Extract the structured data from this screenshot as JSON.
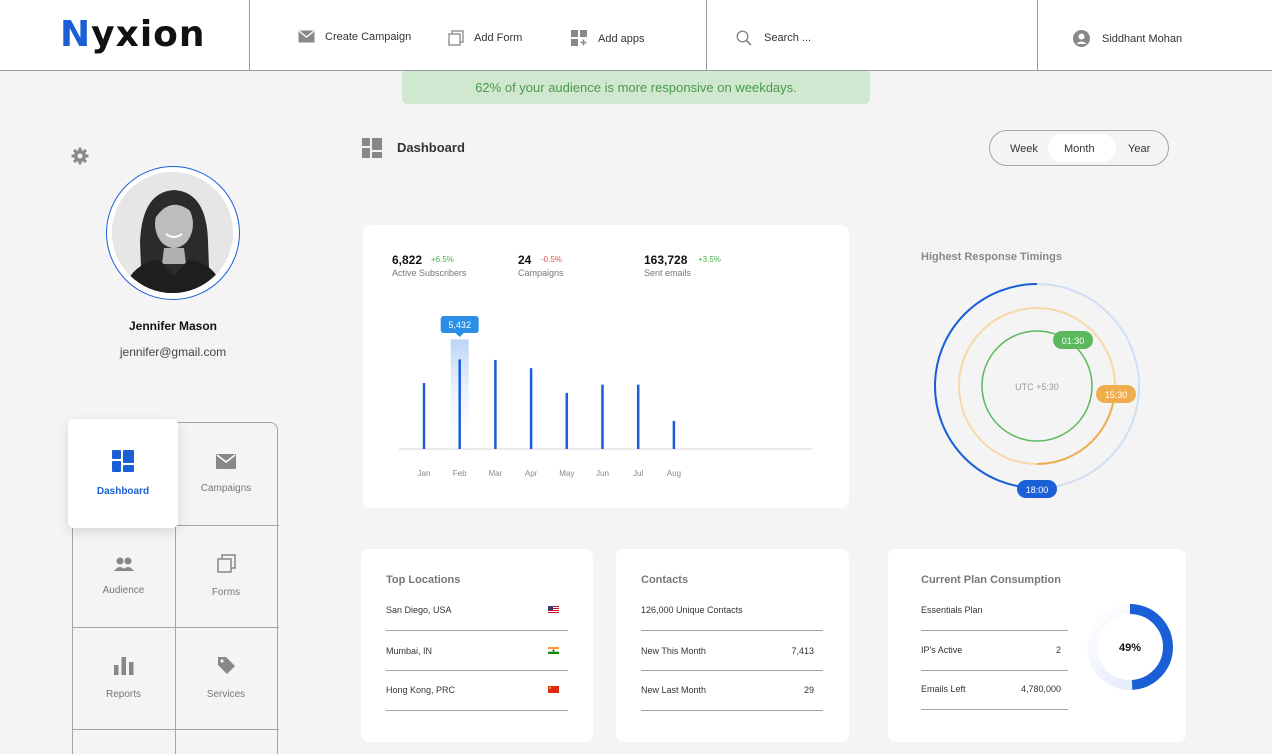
{
  "header": {
    "logo_first": "N",
    "logo_rest": "yxion",
    "nav": [
      {
        "label": "Create Campaign",
        "icon": "mail-icon"
      },
      {
        "label": "Add Form",
        "icon": "form-copy-icon"
      },
      {
        "label": "Add apps",
        "icon": "apps-icon"
      }
    ],
    "search_placeholder": "Search ...",
    "user_name": "Siddhant Mohan"
  },
  "banner": "62% of your audience is more responsive on weekdays.",
  "profile": {
    "name": "Jennifer Mason",
    "email": "jennifer@gmail.com"
  },
  "menu": [
    {
      "label": "Dashboard",
      "icon": "dashboard-icon",
      "active": true
    },
    {
      "label": "Campaigns",
      "icon": "mail-icon"
    },
    {
      "label": "Audience",
      "icon": "audience-icon"
    },
    {
      "label": "Forms",
      "icon": "forms-icon"
    },
    {
      "label": "Reports",
      "icon": "reports-icon"
    },
    {
      "label": "Services",
      "icon": "tag-icon"
    }
  ],
  "dashboard": {
    "title": "Dashboard",
    "periods": [
      "Week",
      "Month",
      "Year"
    ],
    "selected_period": "Month"
  },
  "stats": [
    {
      "value": "6,822",
      "change": "+6.5%",
      "label": "Active Subscribers",
      "trend": "up"
    },
    {
      "value": "24",
      "change": "-0.5%",
      "label": "Campaigns",
      "trend": "down"
    },
    {
      "value": "163,728",
      "change": "+3.5%",
      "label": "Sent emails",
      "trend": "up"
    }
  ],
  "chart_data": {
    "type": "bar",
    "categories": [
      "Jan",
      "Feb",
      "Mar",
      "Apr",
      "May",
      "Jun",
      "Jul",
      "Aug"
    ],
    "values": [
      4000,
      5432,
      5400,
      4900,
      3400,
      3900,
      3900,
      1700
    ],
    "highlight": {
      "index": 1,
      "label": "5,432"
    },
    "ylim": [
      0,
      8000
    ]
  },
  "response_timings": {
    "title": "Highest Response Timings",
    "center": "UTC +5:30",
    "badges": [
      {
        "label": "01:30",
        "color": "#5cb85c"
      },
      {
        "label": "15:30",
        "color": "#f0ad4e"
      },
      {
        "label": "18:00",
        "color": "#1a5fd6"
      }
    ]
  },
  "top_locations": {
    "title": "Top Locations",
    "rows": [
      {
        "name": "San Diego, USA",
        "flag": "us-flag-icon"
      },
      {
        "name": "Mumbai, IN",
        "flag": "india-flag-icon"
      },
      {
        "name": "Hong Kong, PRC",
        "flag": "china-flag-icon"
      }
    ]
  },
  "contacts": {
    "title": "Contacts",
    "unique": "126,000 Unique Contacts",
    "rows": [
      {
        "label": "New This Month",
        "value": "7,413"
      },
      {
        "label": "New Last Month",
        "value": "29"
      }
    ]
  },
  "plan": {
    "title": "Current Plan Consumption",
    "plan_name": "Essentials Plan",
    "rows": [
      {
        "label": "IP's Active",
        "value": "2"
      },
      {
        "label": "Emails Left",
        "value": "4,780,000"
      }
    ],
    "percent_label": "49%",
    "percent": 49,
    "accent": "#1a5fd6"
  }
}
